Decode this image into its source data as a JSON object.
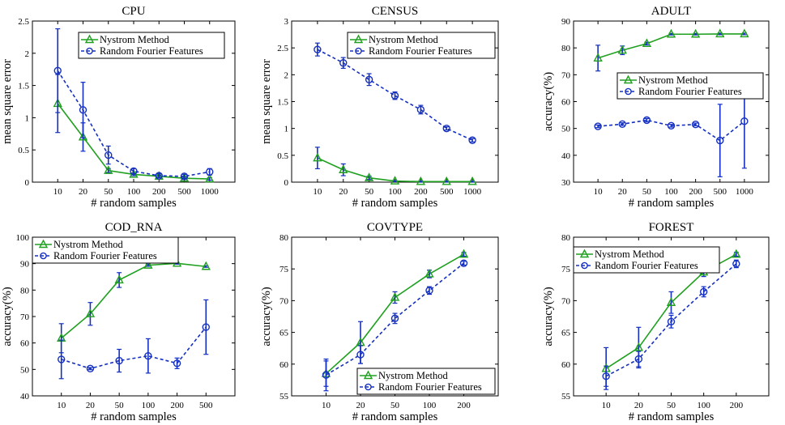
{
  "chart_data": [
    {
      "type": "line",
      "title": "CPU",
      "xlabel": "# random samples",
      "ylabel": "mean square error",
      "categories": [
        "10",
        "20",
        "50",
        "100",
        "200",
        "500",
        "1000"
      ],
      "yticks": [
        "0",
        "0.5",
        "1",
        "1.5",
        "2",
        "2.5"
      ],
      "ylim": [
        0,
        2.5
      ],
      "legend_position": "top-right",
      "series": [
        {
          "name": "Nystrom Method",
          "color": "#1fa01f",
          "values": [
            1.22,
            0.7,
            0.18,
            0.12,
            0.09,
            0.06,
            0.05
          ],
          "err": [
            0.45,
            0.22,
            0.03,
            0.02,
            0.02,
            0.02,
            0.02
          ]
        },
        {
          "name": "Random Fourier Features",
          "color": "#1530c0",
          "values": [
            1.73,
            1.12,
            0.42,
            0.17,
            0.1,
            0.09,
            0.16
          ],
          "err": [
            0.65,
            0.43,
            0.14,
            0.04,
            0.03,
            0.03,
            0.05
          ]
        }
      ]
    },
    {
      "type": "line",
      "title": "CENSUS",
      "xlabel": "# random samples",
      "ylabel": "mean square error",
      "categories": [
        "10",
        "20",
        "50",
        "100",
        "200",
        "500",
        "1000"
      ],
      "yticks": [
        "0",
        "0.5",
        "1",
        "1.5",
        "2",
        "2.5",
        "3"
      ],
      "ylim": [
        0,
        3
      ],
      "legend_position": "top-right",
      "series": [
        {
          "name": "Nystrom Method",
          "color": "#1fa01f",
          "values": [
            0.45,
            0.23,
            0.08,
            0.02,
            0.01,
            0.01,
            0.01
          ],
          "err": [
            0.2,
            0.11,
            0.03,
            0.01,
            0.01,
            0.01,
            0.01
          ]
        },
        {
          "name": "Random Fourier Features",
          "color": "#1530c0",
          "values": [
            2.47,
            2.22,
            1.91,
            1.61,
            1.35,
            1.0,
            0.78
          ],
          "err": [
            0.12,
            0.1,
            0.11,
            0.07,
            0.08,
            0.03,
            0.03
          ]
        }
      ]
    },
    {
      "type": "line",
      "title": "ADULT",
      "xlabel": "# random samples",
      "ylabel": "accuracy(%)",
      "categories": [
        "10",
        "20",
        "50",
        "100",
        "200",
        "500",
        "1000"
      ],
      "yticks": [
        "30",
        "40",
        "50",
        "60",
        "70",
        "80",
        "90"
      ],
      "ylim": [
        30,
        90
      ],
      "legend_position": "center-right",
      "series": [
        {
          "name": "Nystrom Method",
          "color": "#1fa01f",
          "values": [
            76.2,
            79.1,
            81.6,
            85.1,
            85.1,
            85.2,
            85.2
          ],
          "err": [
            4.8,
            1.6,
            0.5,
            0.3,
            0.3,
            0.3,
            0.3
          ]
        },
        {
          "name": "Random Fourier Features",
          "color": "#1530c0",
          "values": [
            50.8,
            51.6,
            53.1,
            51.0,
            51.5,
            45.5,
            52.7
          ],
          "err": [
            0.5,
            0.5,
            0.6,
            0.5,
            0.5,
            13.5,
            17.5
          ]
        }
      ]
    },
    {
      "type": "line",
      "title": "COD_RNA",
      "xlabel": "# random samples",
      "ylabel": "accuracy(%)",
      "categories": [
        "10",
        "20",
        "50",
        "100",
        "200",
        "500"
      ],
      "yticks": [
        "40",
        "50",
        "60",
        "70",
        "80",
        "90",
        "100"
      ],
      "ylim": [
        40,
        100
      ],
      "legend_position": "top-right",
      "series": [
        {
          "name": "Nystrom Method",
          "color": "#1fa01f",
          "values": [
            61.8,
            71.0,
            83.8,
            89.4,
            90.1,
            88.9
          ],
          "err": [
            5.5,
            4.3,
            2.8,
            0.4,
            0.3,
            0.3
          ]
        },
        {
          "name": "Random Fourier Features",
          "color": "#1530c0",
          "values": [
            53.8,
            50.3,
            53.3,
            55.1,
            52.3,
            66.0
          ],
          "err": [
            7.3,
            0.4,
            4.3,
            6.5,
            2.0,
            10.3
          ]
        }
      ]
    },
    {
      "type": "line",
      "title": "COVTYPE",
      "xlabel": "# random samples",
      "ylabel": "accuracy(%)",
      "categories": [
        "10",
        "20",
        "50",
        "100",
        "200"
      ],
      "yticks": [
        "55",
        "60",
        "65",
        "70",
        "75",
        "80"
      ],
      "ylim": [
        55,
        80
      ],
      "legend_position": "bottom-right",
      "series": [
        {
          "name": "Nystrom Method",
          "color": "#1fa01f",
          "values": [
            58.5,
            63.4,
            70.5,
            74.2,
            77.3
          ],
          "err": [
            2.0,
            3.3,
            0.9,
            0.6,
            0.3
          ]
        },
        {
          "name": "Random Fourier Features",
          "color": "#1530c0",
          "values": [
            58.3,
            61.5,
            67.2,
            71.6,
            75.9
          ],
          "err": [
            2.5,
            1.4,
            0.8,
            0.6,
            0.3
          ]
        }
      ]
    },
    {
      "type": "line",
      "title": "FOREST",
      "xlabel": "# random samples",
      "ylabel": "accuracy(%)",
      "categories": [
        "10",
        "20",
        "50",
        "100",
        "200"
      ],
      "yticks": [
        "55",
        "60",
        "65",
        "70",
        "75",
        "80"
      ],
      "ylim": [
        55,
        80
      ],
      "legend_position": "top-left",
      "series": [
        {
          "name": "Nystrom Method",
          "color": "#1fa01f",
          "values": [
            59.3,
            62.6,
            69.7,
            74.5,
            77.3
          ],
          "err": [
            3.3,
            3.2,
            1.7,
            0.7,
            0.3
          ]
        },
        {
          "name": "Random Fourier Features",
          "color": "#1530c0",
          "values": [
            58.1,
            60.8,
            66.7,
            71.4,
            75.8
          ],
          "err": [
            1.6,
            1.2,
            1.0,
            0.8,
            0.6
          ]
        }
      ]
    }
  ]
}
